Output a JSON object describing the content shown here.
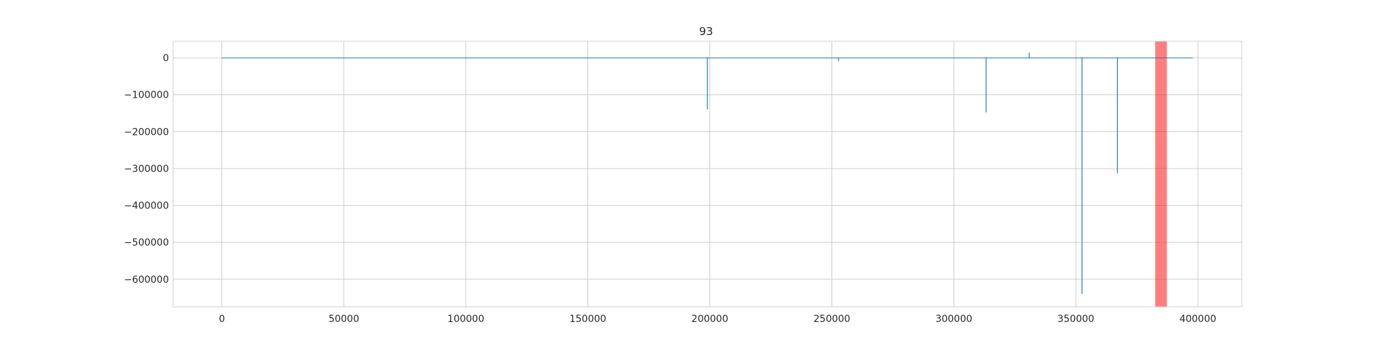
{
  "chart_data": {
    "type": "line",
    "title": "93",
    "xlabel": "",
    "ylabel": "",
    "xlim": [
      -20000,
      418000
    ],
    "ylim": [
      -675000,
      45000
    ],
    "grid": true,
    "series_color": "#1f77b4",
    "highlight_color": "#ff0000",
    "xticks": [
      0,
      50000,
      100000,
      150000,
      200000,
      250000,
      300000,
      350000,
      400000
    ],
    "xtick_labels": [
      "0",
      "50000",
      "100000",
      "150000",
      "200000",
      "250000",
      "300000",
      "350000",
      "400000"
    ],
    "yticks": [
      0,
      -100000,
      -200000,
      -300000,
      -400000,
      -500000,
      -600000
    ],
    "ytick_labels": [
      "0",
      "−100000",
      "−200000",
      "−300000",
      "−400000",
      "−500000",
      "−600000"
    ],
    "x_range": [
      0,
      398000
    ],
    "baseline": 0,
    "spikes": [
      {
        "x": 199000,
        "y": -140000
      },
      {
        "x": 252700,
        "y": -9000
      },
      {
        "x": 313200,
        "y": -148000
      },
      {
        "x": 330900,
        "y": 14000
      },
      {
        "x": 352500,
        "y": -640000
      },
      {
        "x": 367000,
        "y": -313000
      }
    ],
    "highlight_span": [
      382500,
      387300
    ]
  }
}
